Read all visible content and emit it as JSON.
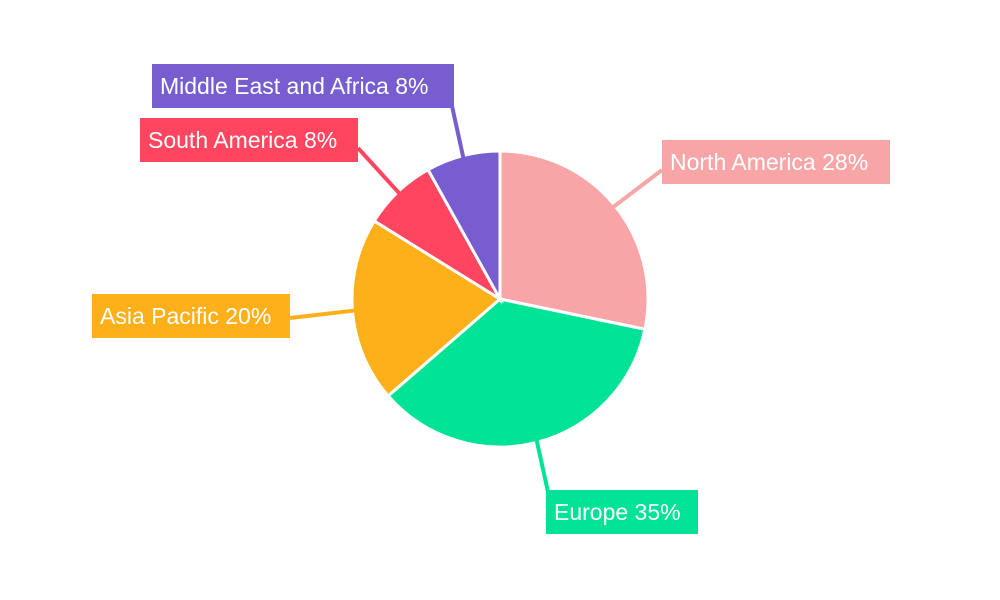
{
  "chart_data": {
    "type": "pie",
    "title": "",
    "slices": [
      {
        "label": "North America 28%",
        "value": 28,
        "color": "#F8A5A8"
      },
      {
        "label": "Europe 35%",
        "value": 35,
        "color": "#00E396"
      },
      {
        "label": "Asia Pacific 20%",
        "value": 20,
        "color": "#FDB019"
      },
      {
        "label": "South America 8%",
        "value": 8,
        "color": "#FF4560"
      },
      {
        "label": "Middle East and Africa 8%",
        "value": 8,
        "color": "#775DD0"
      }
    ],
    "start_angle_deg": 0,
    "direction": "clockwise",
    "labels": "outside-with-leader-lines"
  }
}
